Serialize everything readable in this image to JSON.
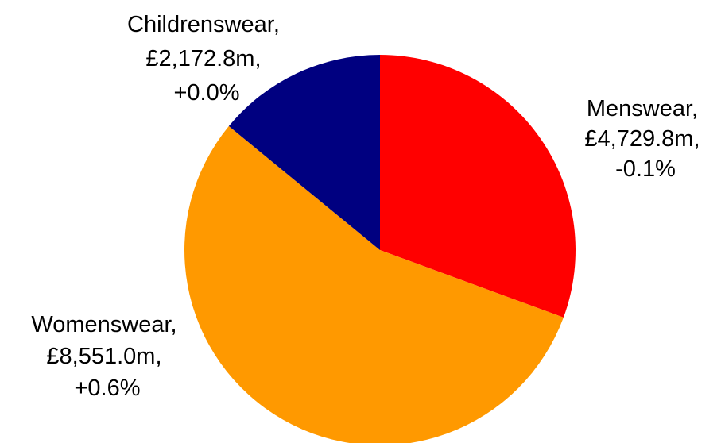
{
  "chart_data": {
    "type": "pie",
    "title": "",
    "slices": [
      {
        "name": "Menswear",
        "value": 4729.8,
        "value_label": "£4,729.8m",
        "change_label": "-0.1%",
        "color": "#ff0000"
      },
      {
        "name": "Womenswear",
        "value": 8551.0,
        "value_label": "£8,551.0m",
        "change_label": "+0.6%",
        "color": "#ff9900"
      },
      {
        "name": "Childrenswear",
        "value": 2172.8,
        "value_label": "£2,172.8m",
        "change_label": "+0.0%",
        "color": "#000080"
      }
    ],
    "start_angle_deg": 0,
    "direction": "clockwise",
    "legend": "none",
    "data_labels": "outside"
  }
}
